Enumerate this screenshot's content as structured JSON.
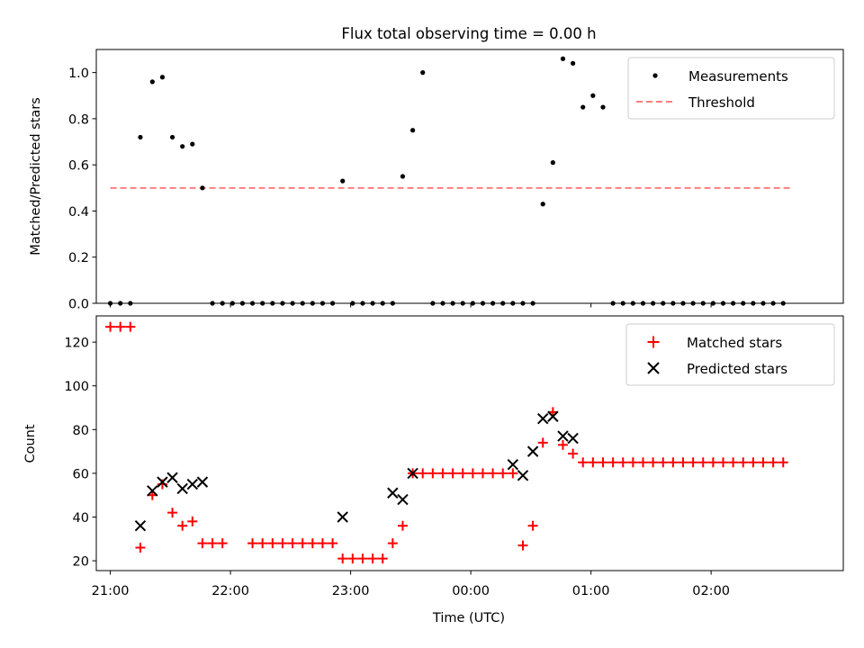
{
  "figure": {
    "title": "Flux total observing time = 0.00 h"
  },
  "chart_data": [
    {
      "type": "scatter",
      "title": "Flux total observing time = 0.00 h",
      "xlabel": "",
      "ylabel": "Matched/Predicted stars",
      "xlim": [
        "20:53",
        "03:06"
      ],
      "ylim": [
        0,
        1.1
      ],
      "xticks": [
        "21:00",
        "22:00",
        "23:00",
        "00:00",
        "01:00",
        "02:00"
      ],
      "yticks": [
        0.0,
        0.2,
        0.4,
        0.6,
        0.8,
        1.0
      ],
      "ytick_labels": [
        "0.0",
        "0.2",
        "0.4",
        "0.6",
        "0.8",
        "1.0"
      ],
      "show_xtick_labels": false,
      "grid": false,
      "legend": {
        "position": "top-right",
        "entries": [
          "Measurements",
          "Threshold"
        ]
      },
      "series": [
        {
          "name": "Measurements",
          "marker": "dot",
          "color": "#000000",
          "x": [
            "21:00",
            "21:05",
            "21:10",
            "21:15",
            "21:21",
            "21:26",
            "21:31",
            "21:36",
            "21:41",
            "21:46",
            "21:51",
            "21:56",
            "22:01",
            "22:06",
            "22:11",
            "22:16",
            "22:21",
            "22:26",
            "22:31",
            "22:36",
            "22:41",
            "22:46",
            "22:51",
            "22:56",
            "23:01",
            "23:06",
            "23:11",
            "23:16",
            "23:21",
            "23:26",
            "23:31",
            "23:36",
            "23:41",
            "23:46",
            "23:51",
            "23:56",
            "00:01",
            "00:06",
            "00:11",
            "00:16",
            "00:21",
            "00:26",
            "00:31",
            "00:36",
            "00:41",
            "00:46",
            "00:51",
            "00:56",
            "01:01",
            "01:06",
            "01:11",
            "01:16",
            "01:21",
            "01:26",
            "01:31",
            "01:36",
            "01:41",
            "01:46",
            "01:51",
            "01:56",
            "02:01",
            "02:06",
            "02:11",
            "02:16",
            "02:21",
            "02:26",
            "02:31",
            "02:36"
          ],
          "y": [
            0,
            0,
            0,
            0.72,
            0.96,
            0.98,
            0.72,
            0.68,
            0.69,
            0.5,
            0,
            0,
            0,
            0,
            0,
            0,
            0,
            0,
            0,
            0,
            0,
            0,
            0,
            0.53,
            0,
            0,
            0,
            0,
            0,
            0.55,
            0.75,
            1.0,
            0,
            0,
            0,
            0,
            0,
            0,
            0,
            0,
            0,
            0,
            0,
            0.43,
            0.61,
            1.06,
            1.04,
            0.85,
            0.9,
            0.85,
            0,
            0,
            0,
            0,
            0,
            0,
            0,
            0,
            0,
            0,
            0,
            0,
            0,
            0,
            0,
            0,
            0,
            0
          ]
        },
        {
          "name": "Threshold",
          "style": "dashed",
          "color": "#ff7f7f",
          "x": [
            "21:00",
            "02:41"
          ],
          "y": [
            0.5,
            0.5
          ]
        }
      ]
    },
    {
      "type": "scatter",
      "title": "",
      "xlabel": "Time (UTC)",
      "ylabel": "Count",
      "xlim": [
        "20:53",
        "03:06"
      ],
      "ylim": [
        15.5,
        132
      ],
      "xticks": [
        "21:00",
        "22:00",
        "23:00",
        "00:00",
        "01:00",
        "02:00"
      ],
      "yticks": [
        20,
        40,
        60,
        80,
        100,
        120
      ],
      "grid": false,
      "legend": {
        "position": "top-right",
        "entries": [
          "Matched stars",
          "Predicted stars"
        ]
      },
      "series": [
        {
          "name": "Matched stars",
          "marker": "plus",
          "color": "#ff0000",
          "x": [
            "21:00",
            "21:05",
            "21:10",
            "21:15",
            "21:21",
            "21:26",
            "21:31",
            "21:36",
            "21:41",
            "21:46",
            "21:51",
            "21:56",
            "22:11",
            "22:16",
            "22:21",
            "22:26",
            "22:31",
            "22:36",
            "22:41",
            "22:46",
            "22:51",
            "22:56",
            "23:01",
            "23:06",
            "23:11",
            "23:16",
            "23:21",
            "23:26",
            "23:31",
            "23:36",
            "23:41",
            "23:46",
            "23:51",
            "23:56",
            "00:01",
            "00:06",
            "00:11",
            "00:16",
            "00:21",
            "00:26",
            "00:31",
            "00:36",
            "00:41",
            "00:46",
            "00:51",
            "00:56",
            "01:01",
            "01:06",
            "01:11",
            "01:16",
            "01:21",
            "01:26",
            "01:31",
            "01:36",
            "01:41",
            "01:46",
            "01:51",
            "01:56",
            "02:01",
            "02:06",
            "02:11",
            "02:16",
            "02:21",
            "02:26",
            "02:31",
            "02:36"
          ],
          "y": [
            127,
            127,
            127,
            26,
            50,
            55,
            42,
            36,
            38,
            28,
            28,
            28,
            28,
            28,
            28,
            28,
            28,
            28,
            28,
            28,
            28,
            21,
            21,
            21,
            21,
            21,
            28,
            36,
            60,
            60,
            60,
            60,
            60,
            60,
            60,
            60,
            60,
            60,
            60,
            27,
            36,
            74,
            88,
            73,
            69,
            65,
            65,
            65,
            65,
            65,
            65,
            65,
            65,
            65,
            65,
            65,
            65,
            65,
            65,
            65,
            65,
            65,
            65,
            65,
            65,
            65
          ]
        },
        {
          "name": "Predicted stars",
          "marker": "x",
          "color": "#000000",
          "x": [
            "21:15",
            "21:21",
            "21:26",
            "21:31",
            "21:36",
            "21:41",
            "21:46",
            "22:56",
            "23:21",
            "23:26",
            "23:31",
            "00:21",
            "00:26",
            "00:31",
            "00:36",
            "00:41",
            "00:46",
            "00:51"
          ],
          "y": [
            36,
            52,
            56,
            58,
            53,
            55,
            56,
            40,
            51,
            48,
            60,
            64,
            59,
            70,
            85,
            86,
            77,
            76
          ]
        }
      ]
    }
  ]
}
